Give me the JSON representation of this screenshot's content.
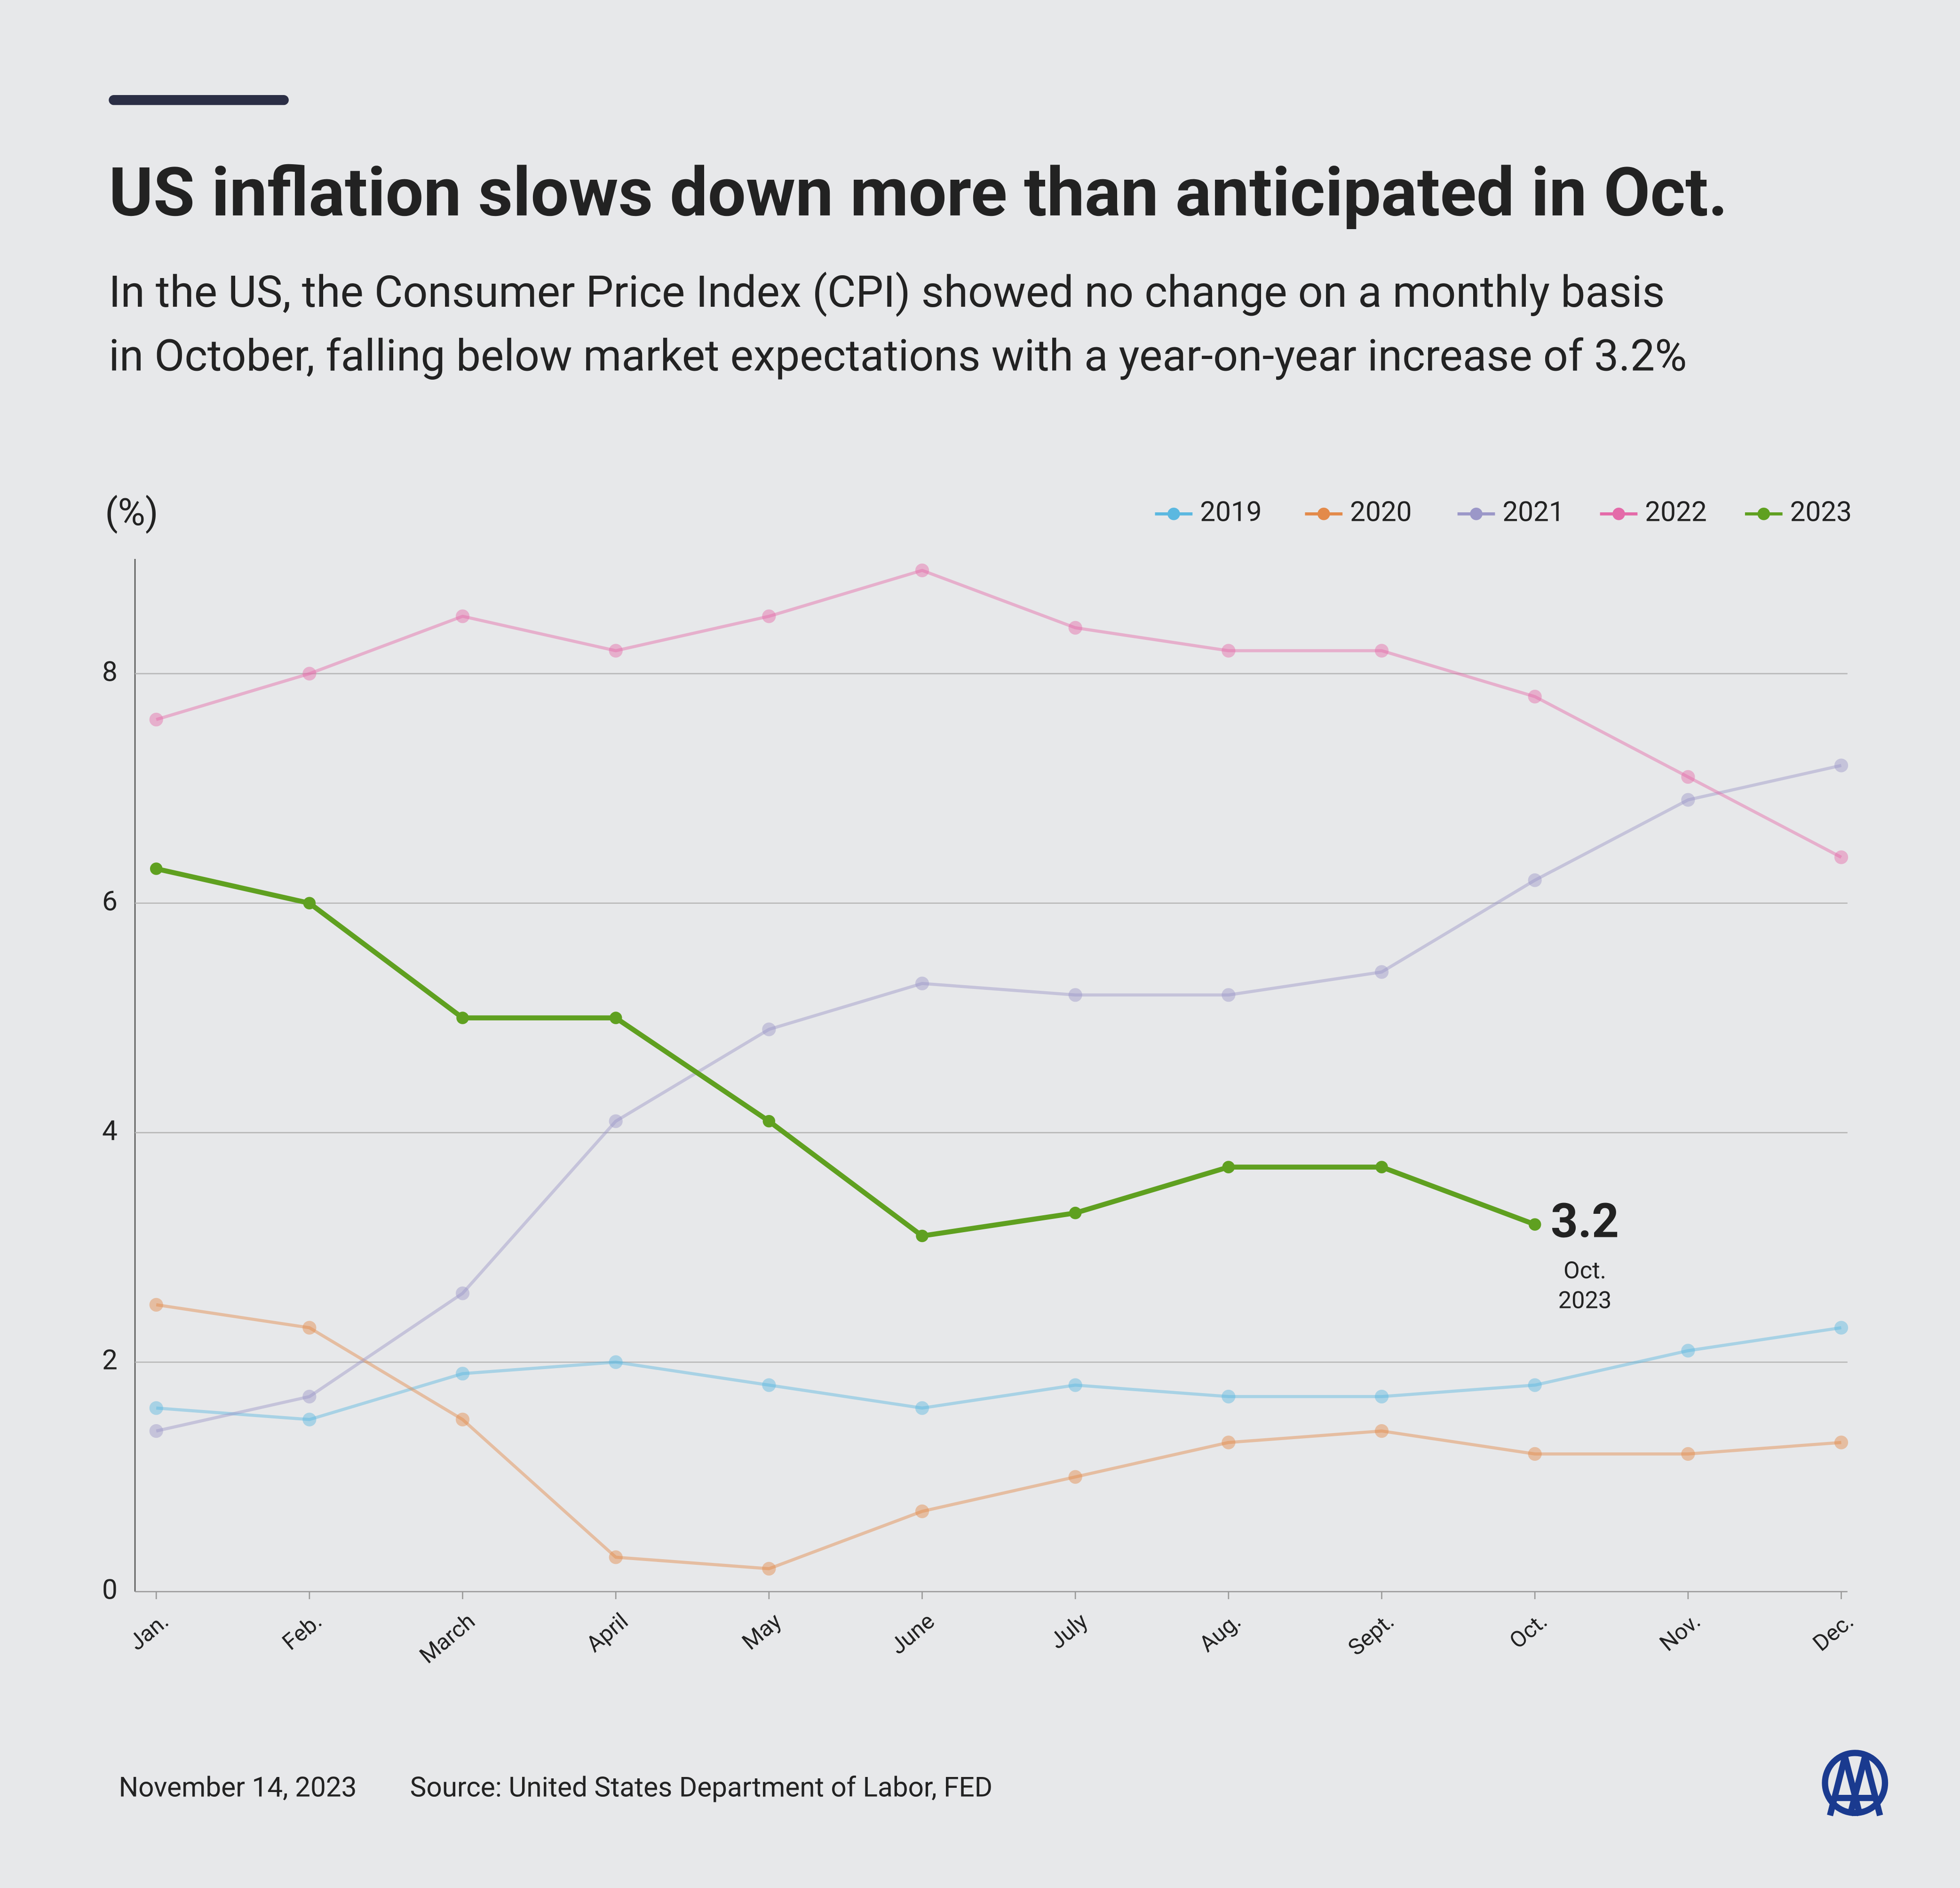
{
  "chart_data": {
    "type": "line",
    "title": "US inflation slows down more than anticipated in Oct.",
    "subtitle": [
      "In the US, the Consumer Price Index (CPI) showed no change on a monthly basis",
      "in October, falling below market expectations with a year-on-year increase of 3.2%"
    ],
    "y_label": "(%)",
    "categories": [
      "Jan.",
      "Feb.",
      "March",
      "April",
      "May",
      "June",
      "July",
      "Aug.",
      "Sept.",
      "Oct.",
      "Nov.",
      "Dec."
    ],
    "series": [
      {
        "name": "2019",
        "color": "#5bb8e0",
        "faded": true,
        "values": [
          1.6,
          1.5,
          1.9,
          2.0,
          1.8,
          1.6,
          1.8,
          1.7,
          1.7,
          1.8,
          2.1,
          2.3
        ]
      },
      {
        "name": "2020",
        "color": "#e38a4a",
        "faded": true,
        "values": [
          2.5,
          2.3,
          1.5,
          0.3,
          0.2,
          0.7,
          1.0,
          1.3,
          1.4,
          1.2,
          1.2,
          1.3
        ]
      },
      {
        "name": "2021",
        "color": "#9b97c8",
        "faded": true,
        "values": [
          1.4,
          1.7,
          2.6,
          4.1,
          4.9,
          5.3,
          5.2,
          5.2,
          5.4,
          6.2,
          6.9,
          7.2
        ]
      },
      {
        "name": "2022",
        "color": "#e46aa9",
        "faded": true,
        "values": [
          7.6,
          8.0,
          8.5,
          8.2,
          8.5,
          8.9,
          8.4,
          8.2,
          8.2,
          7.8,
          7.1,
          6.4
        ]
      },
      {
        "name": "2023",
        "color": "#5fa020",
        "faded": false,
        "values": [
          6.3,
          6.0,
          5.0,
          5.0,
          4.1,
          3.1,
          3.3,
          3.7,
          3.7,
          3.2,
          null,
          null
        ]
      }
    ],
    "annotation": {
      "value_label": "3.2",
      "lines": [
        "Oct.",
        "2023"
      ]
    },
    "ylim": [
      0,
      9
    ],
    "yticks": [
      0,
      2,
      4,
      6,
      8
    ],
    "grid": true,
    "legend": "top-right",
    "date": "November 14, 2023",
    "source": "Source: United States Department of Labor, FED"
  }
}
